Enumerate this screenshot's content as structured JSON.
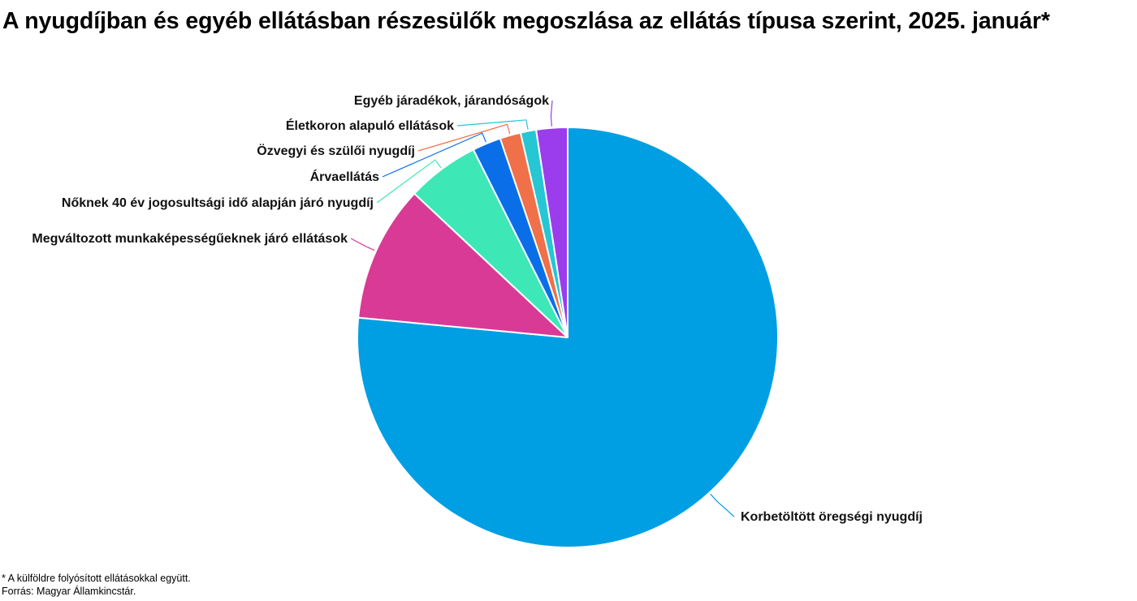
{
  "chart_data": {
    "type": "pie",
    "title": "A nyugdíjban és egyéb ellátásban részesülők megoszlása az ellátás típusa szerint, 2025. január*",
    "slices": [
      {
        "label": "Korbetöltött öregségi nyugdíj",
        "value": 76.5,
        "color": "#009fe3"
      },
      {
        "label": "Megváltozott munkaképességűeknek járó ellátások",
        "value": 10.5,
        "color": "#d93a96"
      },
      {
        "label": "Nőknek 40 év jogosultsági idő alapján járó nyugdíj",
        "value": 5.6,
        "color": "#3de8b6"
      },
      {
        "label": "Árvaellátás",
        "value": 2.2,
        "color": "#0a6ee8"
      },
      {
        "label": "Özvegyi és szülői nyugdíj",
        "value": 1.6,
        "color": "#ef7049"
      },
      {
        "label": "Életkoron alapuló ellátások",
        "value": 1.2,
        "color": "#26c6d4"
      },
      {
        "label": "Egyéb járadékok, járandóságok",
        "value": 2.4,
        "color": "#9b3ced"
      }
    ],
    "legend": "none",
    "labels": "outside-with-leader-lines"
  },
  "footnote": {
    "note": "* A külföldre folyósított ellátásokkal együtt.",
    "source": "Forrás: Magyar Államkincstár."
  }
}
